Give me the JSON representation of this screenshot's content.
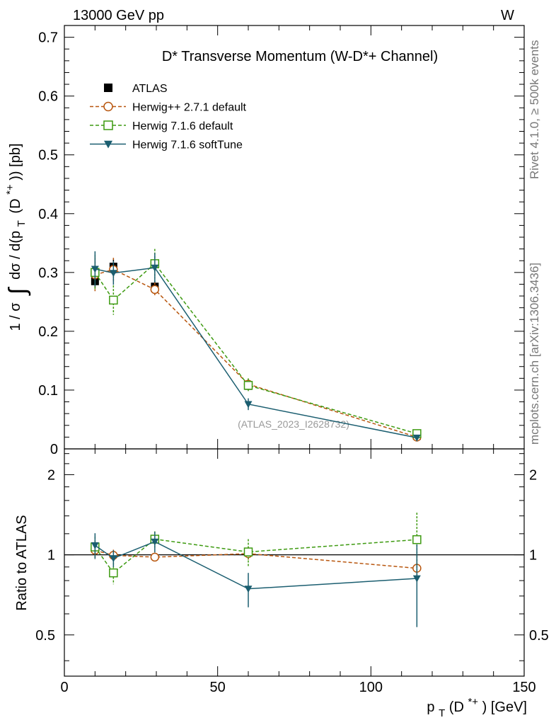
{
  "header": {
    "left": "13000 GeV pp",
    "right": "W"
  },
  "side_labels": {
    "rivet": "Rivet 4.1.0, ≥ 500k events",
    "mcplots": "mcplots.cern.ch [arXiv:1306.3436]"
  },
  "watermark": "(ATLAS_2023_I2628732)",
  "chart_data": [
    {
      "type": "line",
      "title": "D* Transverse Momentum (W-D*+ Channel)",
      "ylabel": "1 / σ ∫ dσ / d(p_T (D*+)) [pb]",
      "ylabel_main": "1 / σ",
      "ylabel_int": "∫",
      "ylabel_rest": "dσ / d(p",
      "ylabel_sub": "T",
      "ylabel_paren": "(D",
      "ylabel_sup": "*+",
      "ylabel_end": ")) [pb]",
      "xlim": [
        0,
        150
      ],
      "ylim": [
        0,
        0.72
      ],
      "yticks": [
        0.1,
        0.2,
        0.3,
        0.4,
        0.5,
        0.6,
        0.7
      ],
      "ytick_labels": [
        "0.1",
        "0.2",
        "0.3",
        "0.4",
        "0.5",
        "0.6",
        "0.7"
      ],
      "y_zero_label": "0",
      "series": [
        {
          "name": "ATLAS",
          "color": "#000000",
          "marker": "square-filled",
          "dash": "",
          "x": [
            10,
            16,
            29.5,
            60,
            115
          ],
          "y": [
            0.285,
            0.31,
            0.276,
            0.107,
            0.022
          ],
          "err": [
            0.012,
            0.012,
            0.01,
            0.005,
            0.002
          ]
        },
        {
          "name": "Herwig++ 2.7.1 default",
          "color": "#b8560e",
          "marker": "circle-open",
          "dash": "5,3",
          "x": [
            10,
            16,
            29.5,
            60,
            115
          ],
          "y": [
            0.296,
            0.305,
            0.271,
            0.11,
            0.02
          ],
          "err": [
            0.03,
            0.02,
            0.012,
            0.008,
            0.002
          ]
        },
        {
          "name": "Herwig 7.1.6 default",
          "color": "#3d9a10",
          "marker": "square-open",
          "dash": "5,3",
          "x": [
            10,
            16,
            29.5,
            60,
            115
          ],
          "y": [
            0.3,
            0.253,
            0.315,
            0.108,
            0.026
          ],
          "err": [
            0.03,
            0.025,
            0.025,
            0.012,
            0.004
          ]
        },
        {
          "name": "Herwig 7.1.6 softTune",
          "color": "#1b5e70",
          "marker": "triangle-down",
          "dash": "",
          "x": [
            10,
            16,
            29.5,
            60,
            115
          ],
          "y": [
            0.306,
            0.299,
            0.308,
            0.076,
            0.019
          ],
          "err": [
            0.03,
            0.02,
            0.025,
            0.01,
            0.003
          ]
        }
      ]
    },
    {
      "type": "line",
      "ylabel": "Ratio to ATLAS",
      "xlabel": "p_T(D*+) [GeV]",
      "xlabel_main": "p",
      "xlabel_sub": "T",
      "xlabel_paren": "(D",
      "xlabel_sup": "*+",
      "xlabel_end": ") [GeV]",
      "xlim": [
        0,
        150
      ],
      "ylim": [
        0.35,
        2.5
      ],
      "yscale": "log",
      "reference": 1,
      "yticks": [
        0.5,
        1,
        2
      ],
      "ytick_labels": [
        "0.5",
        "1",
        "2"
      ],
      "xticks": [
        0,
        50,
        100,
        150
      ],
      "xtick_labels": [
        "0",
        "50",
        "100",
        "150"
      ],
      "series": [
        {
          "name": "Herwig++ 2.7.1 default",
          "color": "#b8560e",
          "marker": "circle-open",
          "dash": "5,3",
          "x": [
            10,
            16,
            29.5,
            60,
            115
          ],
          "y": [
            1.04,
            0.995,
            0.98,
            1.01,
            0.89
          ],
          "err": [
            0.08,
            0.05,
            0.03,
            0.06,
            0.1
          ]
        },
        {
          "name": "Herwig 7.1.6 default",
          "color": "#3d9a10",
          "marker": "square-open",
          "dash": "5,3",
          "x": [
            10,
            16,
            29.5,
            60,
            115
          ],
          "y": [
            1.07,
            0.855,
            1.145,
            1.025,
            1.14
          ],
          "err": [
            0.1,
            0.08,
            0.08,
            0.12,
            0.3
          ]
        },
        {
          "name": "Herwig 7.1.6 softTune",
          "color": "#1b5e70",
          "marker": "triangle-down",
          "dash": "",
          "x": [
            10,
            16,
            29.5,
            60,
            115
          ],
          "y": [
            1.085,
            0.97,
            1.12,
            0.745,
            0.815
          ],
          "err": [
            0.12,
            0.07,
            0.1,
            0.11,
            0.28
          ]
        }
      ]
    }
  ]
}
